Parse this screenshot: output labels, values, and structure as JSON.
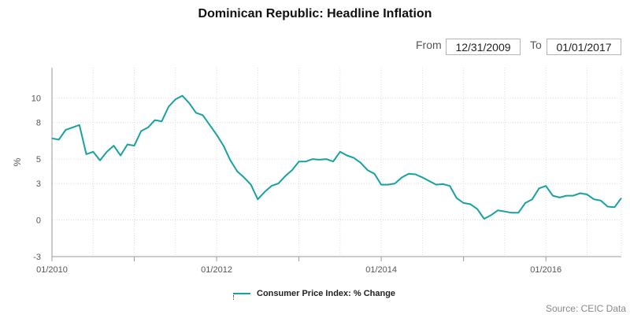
{
  "header": {
    "title": "Dominican Republic: Headline Inflation",
    "from_label": "From",
    "from_value": "12/31/2009",
    "to_label": "To",
    "to_value": "01/01/2017"
  },
  "legend_label": "Consumer Price Index: % Change",
  "source": "Source: CEIC Data",
  "chart_data": {
    "type": "line",
    "title": "Dominican Republic: Headline Inflation",
    "xlabel": "",
    "ylabel": "%",
    "ylim": [
      -3,
      12.5
    ],
    "xlim": [
      "2010-01",
      "2016-12"
    ],
    "y_ticks": [
      -3,
      0,
      3,
      5,
      8,
      10
    ],
    "y_tick_labels": [
      "-3",
      "0",
      "3",
      "5",
      "8",
      "10"
    ],
    "x_tick_labels": [
      "01/2010",
      "01/2012",
      "01/2014",
      "01/2016"
    ],
    "x_tick_dates": [
      "2010-01",
      "2012-01",
      "2014-01",
      "2016-01"
    ],
    "grid": true,
    "legend_position": "bottom",
    "series_color": "#17a2a0",
    "series": [
      {
        "name": "Consumer Price Index: % Change",
        "x": [
          "2010-01",
          "2010-02",
          "2010-03",
          "2010-04",
          "2010-05",
          "2010-06",
          "2010-07",
          "2010-08",
          "2010-09",
          "2010-10",
          "2010-11",
          "2010-12",
          "2011-01",
          "2011-02",
          "2011-03",
          "2011-04",
          "2011-05",
          "2011-06",
          "2011-07",
          "2011-08",
          "2011-09",
          "2011-10",
          "2011-11",
          "2011-12",
          "2012-01",
          "2012-02",
          "2012-03",
          "2012-04",
          "2012-05",
          "2012-06",
          "2012-07",
          "2012-08",
          "2012-09",
          "2012-10",
          "2012-11",
          "2012-12",
          "2013-01",
          "2013-02",
          "2013-03",
          "2013-04",
          "2013-05",
          "2013-06",
          "2013-07",
          "2013-08",
          "2013-09",
          "2013-10",
          "2013-11",
          "2013-12",
          "2014-01",
          "2014-02",
          "2014-03",
          "2014-04",
          "2014-05",
          "2014-06",
          "2014-07",
          "2014-08",
          "2014-09",
          "2014-10",
          "2014-11",
          "2014-12",
          "2015-01",
          "2015-02",
          "2015-03",
          "2015-04",
          "2015-05",
          "2015-06",
          "2015-07",
          "2015-08",
          "2015-09",
          "2015-10",
          "2015-11",
          "2015-12",
          "2016-01",
          "2016-02",
          "2016-03",
          "2016-04",
          "2016-05",
          "2016-06",
          "2016-07",
          "2016-08",
          "2016-09",
          "2016-10",
          "2016-11",
          "2016-12"
        ],
        "values": [
          6.7,
          6.6,
          7.4,
          7.6,
          7.8,
          5.4,
          5.6,
          4.9,
          5.6,
          6.1,
          5.3,
          6.2,
          6.1,
          7.3,
          7.6,
          8.2,
          8.1,
          9.3,
          9.9,
          10.2,
          9.6,
          8.8,
          8.6,
          7.8,
          7.0,
          6.1,
          4.9,
          4.0,
          3.5,
          2.9,
          1.7,
          2.3,
          2.8,
          3.0,
          3.6,
          4.1,
          4.8,
          4.8,
          5.0,
          4.95,
          5.0,
          4.8,
          5.6,
          5.3,
          5.1,
          4.7,
          4.1,
          3.8,
          2.9,
          2.9,
          3.0,
          3.5,
          3.8,
          3.75,
          3.5,
          3.2,
          2.9,
          2.95,
          2.8,
          1.8,
          1.4,
          1.3,
          0.9,
          0.1,
          0.4,
          0.8,
          0.7,
          0.6,
          0.6,
          1.4,
          1.7,
          2.6,
          2.8,
          2.0,
          1.85,
          2.0,
          2.0,
          2.2,
          2.1,
          1.7,
          1.6,
          1.1,
          1.05,
          1.8
        ]
      }
    ]
  }
}
